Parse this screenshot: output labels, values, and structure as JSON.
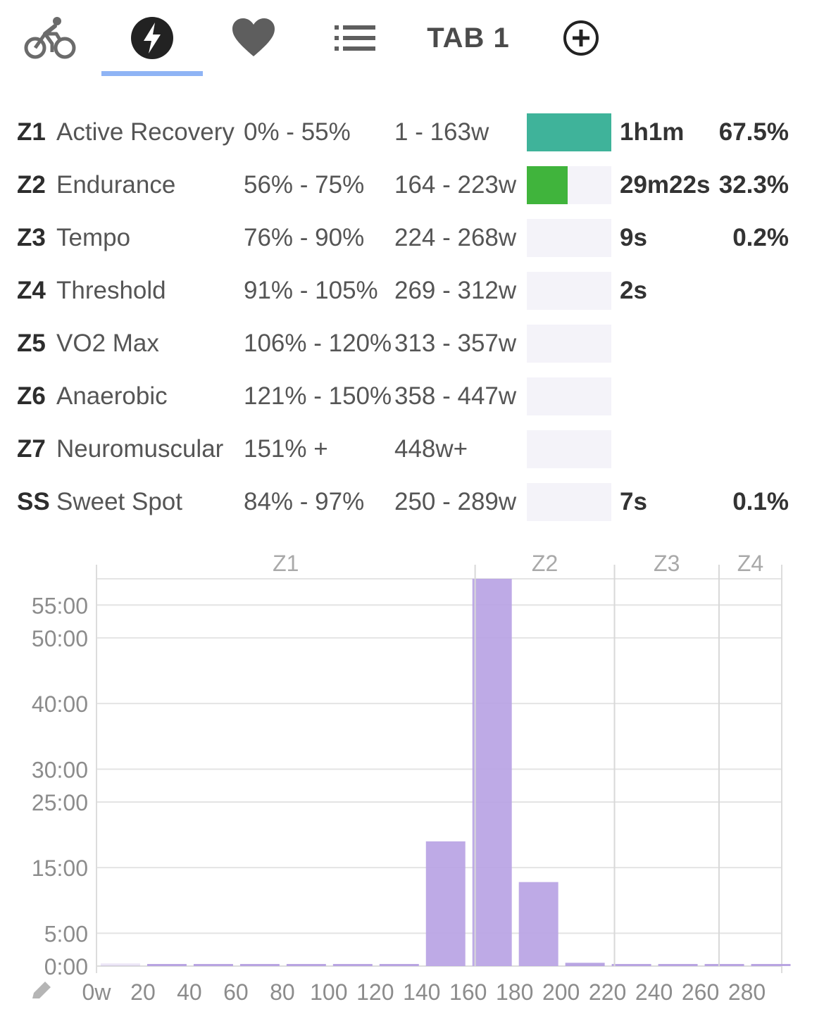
{
  "tabs": [
    {
      "id": "ride",
      "icon": "bicycle-icon"
    },
    {
      "id": "power",
      "icon": "lightning-bolt-icon",
      "active": true
    },
    {
      "id": "heart",
      "icon": "heart-icon"
    },
    {
      "id": "laps",
      "icon": "list-icon"
    },
    {
      "id": "tab1",
      "label": "TAB 1"
    },
    {
      "id": "add",
      "icon": "add-circle-icon"
    }
  ],
  "colors": {
    "accent": "#8fb4f5",
    "z1": "#3fb39a",
    "z2": "#40b43c",
    "bar_track": "#f4f3f9",
    "hist_bar": "#b9a3e4"
  },
  "zones": [
    {
      "id": "Z1",
      "name": "Active Recovery",
      "pct": "0% - 55%",
      "watts": "1 - 163w",
      "time": "1h1m",
      "share": "67.5%",
      "fill": 1.0,
      "color": "#3fb39a"
    },
    {
      "id": "Z2",
      "name": "Endurance",
      "pct": "56% - 75%",
      "watts": "164 - 223w",
      "time": "29m22s",
      "share": "32.3%",
      "fill": 0.48,
      "color": "#40b43c"
    },
    {
      "id": "Z3",
      "name": "Tempo",
      "pct": "76% - 90%",
      "watts": "224 - 268w",
      "time": "9s",
      "share": "0.2%",
      "fill": 0.0,
      "color": "#e8a23a"
    },
    {
      "id": "Z4",
      "name": "Threshold",
      "pct": "91% - 105%",
      "watts": "269 - 312w",
      "time": "2s",
      "share": "",
      "fill": 0.0,
      "color": "#e8743a"
    },
    {
      "id": "Z5",
      "name": "VO2 Max",
      "pct": "106% - 120%",
      "watts": "313 - 357w",
      "time": "",
      "share": "",
      "fill": 0.0,
      "color": "#e0453a"
    },
    {
      "id": "Z6",
      "name": "Anaerobic",
      "pct": "121% - 150%",
      "watts": "358 - 447w",
      "time": "",
      "share": "",
      "fill": 0.0,
      "color": "#c23a8a"
    },
    {
      "id": "Z7",
      "name": "Neuromuscular",
      "pct": "151% +",
      "watts": "448w+",
      "time": "",
      "share": "",
      "fill": 0.0,
      "color": "#7a3ac2"
    },
    {
      "id": "SS",
      "name": "Sweet Spot",
      "pct": "84% - 97%",
      "watts": "250 - 289w",
      "time": "7s",
      "share": "0.1%",
      "fill": 0.0,
      "color": "#e8a23a"
    }
  ],
  "chart_data": {
    "type": "bar",
    "xlabel": "",
    "ylabel": "",
    "x_unit_suffix": "w",
    "x_ticks": [
      0,
      20,
      40,
      60,
      80,
      100,
      120,
      140,
      160,
      180,
      200,
      220,
      240,
      260,
      280
    ],
    "x_tick_labels": [
      "0w",
      "20",
      "40",
      "60",
      "80",
      "100",
      "120",
      "140",
      "160",
      "180",
      "200",
      "220",
      "240",
      "260",
      "280"
    ],
    "y_ticks_minutes": [
      0,
      5,
      15,
      25,
      30,
      40,
      50,
      55
    ],
    "y_tick_labels": [
      "0:00",
      "5:00",
      "15:00",
      "25:00",
      "30:00",
      "40:00",
      "50:00",
      "55:00"
    ],
    "xlim": [
      0,
      295
    ],
    "ylim_minutes": [
      0,
      59
    ],
    "zone_labels": [
      {
        "label": "Z1",
        "from": 0,
        "to": 163
      },
      {
        "label": "Z2",
        "from": 163,
        "to": 223
      },
      {
        "label": "Z3",
        "from": 223,
        "to": 268
      },
      {
        "label": "Z4",
        "from": 268,
        "to": 295
      }
    ],
    "zone_boundaries": [
      163,
      223,
      268
    ],
    "bins": [
      {
        "from": 0,
        "to": 20,
        "minutes": 0.4
      },
      {
        "from": 20,
        "to": 40,
        "minutes": 0.05
      },
      {
        "from": 40,
        "to": 60,
        "minutes": 0.05
      },
      {
        "from": 60,
        "to": 80,
        "minutes": 0.05
      },
      {
        "from": 80,
        "to": 100,
        "minutes": 0.1
      },
      {
        "from": 100,
        "to": 120,
        "minutes": 0.1
      },
      {
        "from": 120,
        "to": 140,
        "minutes": 0.1
      },
      {
        "from": 140,
        "to": 160,
        "minutes": 19.0
      },
      {
        "from": 160,
        "to": 180,
        "minutes": 59.0
      },
      {
        "from": 180,
        "to": 200,
        "minutes": 12.8
      },
      {
        "from": 200,
        "to": 220,
        "minutes": 0.5
      },
      {
        "from": 220,
        "to": 240,
        "minutes": 0.15
      },
      {
        "from": 240,
        "to": 260,
        "minutes": 0.15
      },
      {
        "from": 260,
        "to": 280,
        "minutes": 0.15
      },
      {
        "from": 280,
        "to": 300,
        "minutes": 0.15
      }
    ]
  },
  "chart_footer": {
    "icon": "pencil-icon"
  }
}
